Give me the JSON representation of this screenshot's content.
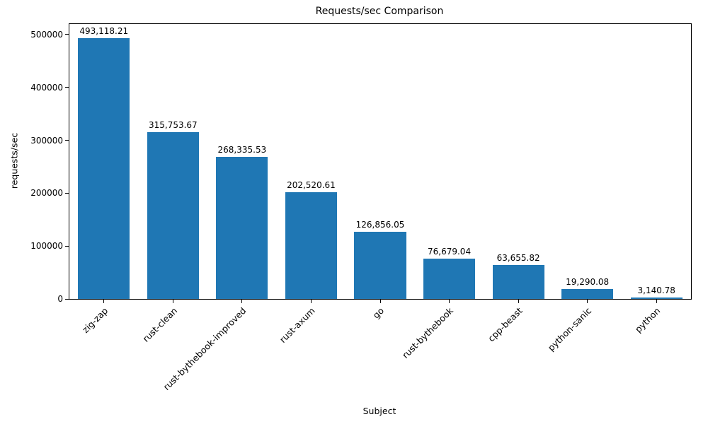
{
  "chart_data": {
    "type": "bar",
    "title": "Requests/sec Comparison",
    "xlabel": "Subject",
    "ylabel": "requests/sec",
    "categories": [
      "zig-zap",
      "rust-clean",
      "rust-bythebook-improved",
      "rust-axum",
      "go",
      "rust-bythebook",
      "cpp-beast",
      "python-sanic",
      "python"
    ],
    "values": [
      493118.21,
      315753.67,
      268335.53,
      202520.61,
      126856.05,
      76679.04,
      63655.82,
      19290.08,
      3140.78
    ],
    "value_labels": [
      "493,118.21",
      "315,753.67",
      "268,335.53",
      "202,520.61",
      "126,856.05",
      "76,679.04",
      "63,655.82",
      "19,290.08",
      "3,140.78"
    ],
    "ylim": [
      0,
      520000
    ],
    "yticks": [
      0,
      100000,
      200000,
      300000,
      400000,
      500000
    ],
    "ytick_labels": [
      "0",
      "100000",
      "200000",
      "300000",
      "400000",
      "500000"
    ],
    "bar_color": "#1f77b4",
    "grid": false,
    "legend": null
  }
}
